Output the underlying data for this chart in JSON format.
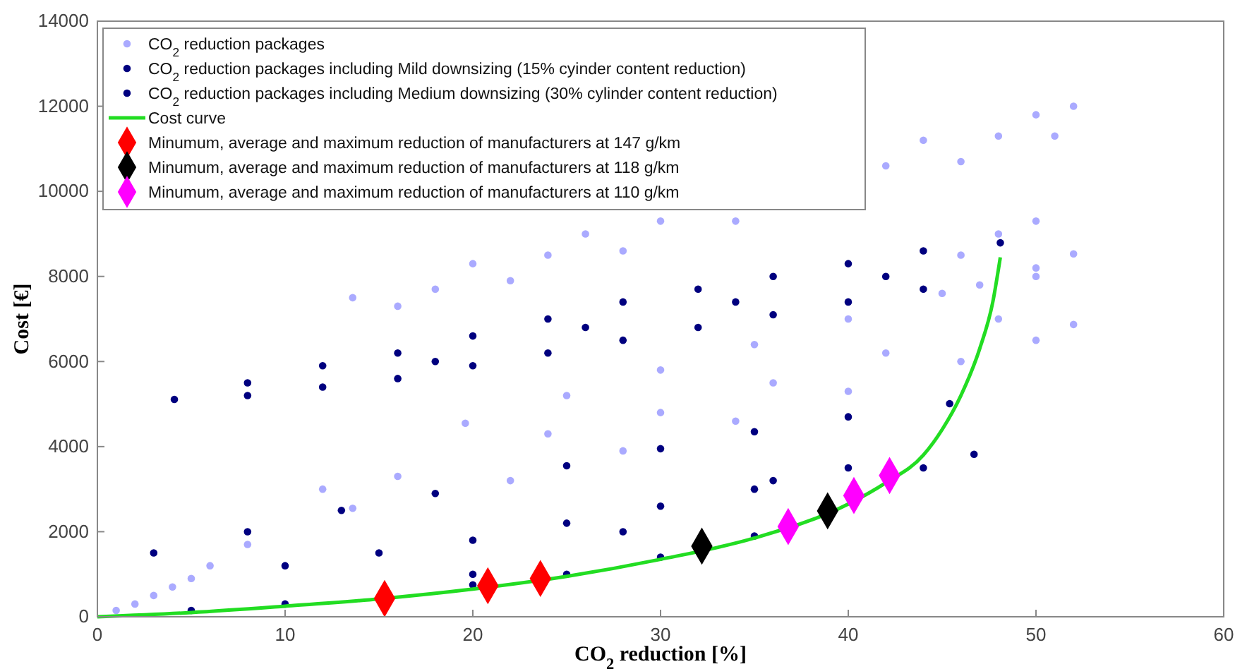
{
  "chart_data": {
    "type": "scatter",
    "xlabel": "CO$_{2}$ reduction [%]",
    "ylabel": "Cost [€]",
    "xlim": [
      0,
      60
    ],
    "ylim": [
      0,
      14000
    ],
    "xticks": [
      0,
      10,
      20,
      30,
      40,
      50,
      60
    ],
    "yticks": [
      0,
      2000,
      4000,
      6000,
      8000,
      10000,
      12000,
      14000
    ],
    "grid": false,
    "legend": "top left",
    "series": [
      {
        "name": "CO$_{2}$ reduction packages",
        "marker": "circle",
        "color": "#aaaaff",
        "x": [
          13.6,
          20,
          26,
          44,
          50,
          52,
          51,
          46,
          34,
          28,
          22,
          16,
          18,
          24,
          30,
          42,
          48,
          46,
          48,
          50,
          50,
          47,
          8,
          13.6,
          19.6,
          25,
          30,
          35,
          40,
          45,
          50,
          52,
          52,
          50,
          46,
          40,
          34,
          28,
          22,
          16,
          12,
          24,
          30,
          36,
          42,
          48,
          1,
          2,
          3,
          4,
          5,
          6
        ],
        "values": [
          7500,
          8300,
          9000,
          11200,
          11800,
          12000,
          11300,
          10700,
          9300,
          8600,
          7900,
          7300,
          7700,
          8500,
          9300,
          10600,
          11300,
          8500,
          9000,
          9300,
          8000,
          7800,
          1700,
          2550,
          4550,
          5200,
          5800,
          6400,
          7000,
          7600,
          8200,
          8530,
          6870,
          6500,
          6000,
          5300,
          4600,
          3900,
          3200,
          3300,
          3000,
          4300,
          4800,
          5500,
          6200,
          7000,
          150,
          300,
          500,
          700,
          900,
          1200
        ]
      },
      {
        "name": "CO$_{2}$ reduction packages including Mild downsizing (15% cyinder content reduction)",
        "marker": "circle",
        "color": "#00007f",
        "x": [
          4.1,
          8,
          12,
          16,
          20,
          24,
          28,
          32,
          36,
          40,
          44,
          48.1,
          44,
          40,
          36,
          32,
          28,
          24,
          20,
          16,
          12,
          8,
          26,
          34,
          42,
          18
        ],
        "values": [
          5110,
          5500,
          5900,
          6200,
          6600,
          7000,
          7400,
          7700,
          8000,
          8300,
          8600,
          8790,
          7700,
          7400,
          7100,
          6800,
          6500,
          6200,
          5900,
          5600,
          5400,
          5200,
          6800,
          7400,
          8000,
          6000
        ]
      },
      {
        "name": "CO$_{2}$ reduction packages including Medium downsizing (30% cylinder content reduction)",
        "marker": "circle",
        "color": "#000080",
        "x": [
          3,
          8,
          13,
          18,
          25,
          30,
          35,
          40,
          45.4,
          5,
          10,
          20,
          25,
          30,
          35,
          44,
          46.7,
          10,
          15,
          20,
          25,
          30,
          35,
          40,
          20,
          28,
          36
        ],
        "values": [
          1500,
          2000,
          2500,
          2900,
          3550,
          3950,
          4350,
          4700,
          5010,
          150,
          300,
          750,
          1000,
          1400,
          1900,
          3500,
          3820,
          1200,
          1500,
          1800,
          2200,
          2600,
          3000,
          3500,
          1000,
          2000,
          3200
        ]
      },
      {
        "name": "Cost curve",
        "type": "line",
        "marker": "none",
        "color": "#22dd22",
        "x": [
          0,
          5,
          10,
          15,
          20,
          25,
          30,
          35,
          40,
          42,
          44,
          45,
          46,
          47,
          47.7,
          48.1
        ],
        "values": [
          0,
          100,
          250,
          420,
          650,
          950,
          1350,
          1850,
          2650,
          3150,
          3800,
          4400,
          5200,
          6300,
          7400,
          8450
        ]
      },
      {
        "name": "Minumum, average and maximum reduction of manufacturers at 147 g/km",
        "marker": "diamond",
        "color": "#ff0000",
        "x": [
          15.3,
          20.8,
          23.6
        ],
        "values": [
          430,
          730,
          900
        ]
      },
      {
        "name": "Minumum, average and maximum reduction of manufacturers at 118 g/km",
        "marker": "diamond",
        "color": "#000000",
        "x": [
          32.2,
          36.6,
          38.9
        ],
        "values": [
          1660,
          null,
          2490
        ]
      },
      {
        "name": "Minumum, average and maximum reduction of manufacturers at 110 g/km",
        "marker": "diamond",
        "color": "#ff00ff",
        "x": [
          36.8,
          40.3,
          42.2
        ],
        "values": [
          2120,
          2850,
          3320
        ]
      }
    ]
  }
}
